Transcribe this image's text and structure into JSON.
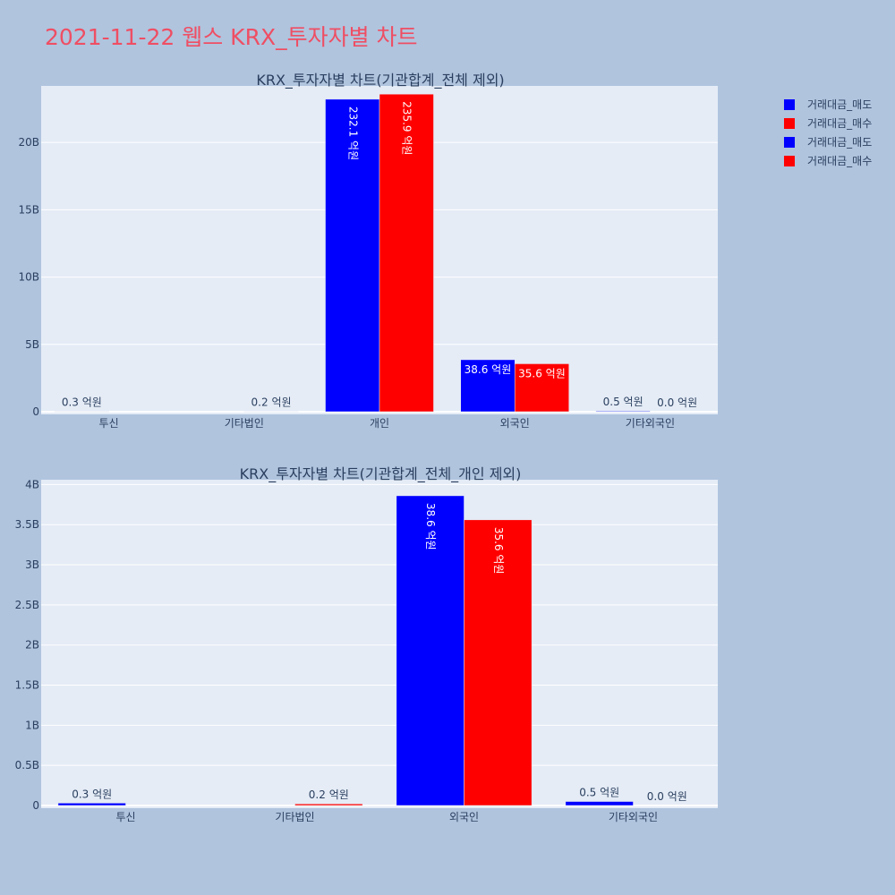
{
  "title": "2021-11-22 웹스 KRX_투자자별 차트",
  "legend": [
    {
      "label": "거래대금_매도",
      "color": "#0000ff"
    },
    {
      "label": "거래대금_매수",
      "color": "#ff0000"
    },
    {
      "label": "거래대금_매도",
      "color": "#0000ff"
    },
    {
      "label": "거래대금_매수",
      "color": "#ff0000"
    }
  ],
  "chart_data": [
    {
      "type": "bar",
      "title": "KRX_투자자별 차트(기관합계_전체 제외)",
      "categories": [
        "투신",
        "기타법인",
        "개인",
        "외국인",
        "기타외국인"
      ],
      "ylim": [
        0,
        24200000000
      ],
      "yticks": [
        0,
        5000000000,
        10000000000,
        15000000000,
        20000000000
      ],
      "ytick_labels": [
        "0",
        "5B",
        "10B",
        "15B",
        "20B"
      ],
      "grid": true,
      "legend_position": "top-right",
      "series": [
        {
          "name": "거래대금_매도",
          "color": "#0000ff",
          "values": [
            30000000,
            0,
            23210000000,
            3860000000,
            50000000
          ],
          "labels": [
            "0.3 억원",
            "",
            "232.1 억원",
            "38.6 억원",
            "0.5 억원"
          ]
        },
        {
          "name": "거래대금_매수",
          "color": "#ff0000",
          "values": [
            0,
            20000000,
            23590000000,
            3560000000,
            0
          ],
          "labels": [
            "",
            "0.2 억원",
            "235.9 억원",
            "35.6 억원",
            "0.0 억원"
          ]
        }
      ]
    },
    {
      "type": "bar",
      "title": "KRX_투자자별 차트(기관합계_전체_개인 제외)",
      "categories": [
        "투신",
        "기타법인",
        "외국인",
        "기타외국인"
      ],
      "ylim": [
        0,
        4060000000
      ],
      "yticks": [
        0,
        500000000,
        1000000000,
        1500000000,
        2000000000,
        2500000000,
        3000000000,
        3500000000,
        4000000000
      ],
      "ytick_labels": [
        "0",
        "0.5B",
        "1B",
        "1.5B",
        "2B",
        "2.5B",
        "3B",
        "3.5B",
        "4B"
      ],
      "grid": true,
      "series": [
        {
          "name": "거래대금_매도",
          "color": "#0000ff",
          "values": [
            30000000,
            0,
            3860000000,
            50000000
          ],
          "labels": [
            "0.3 억원",
            "",
            "38.6 억원",
            "0.5 억원"
          ]
        },
        {
          "name": "거래대금_매수",
          "color": "#ff0000",
          "values": [
            0,
            20000000,
            3560000000,
            0
          ],
          "labels": [
            "",
            "0.2 억원",
            "35.6 억원",
            "0.0 억원"
          ]
        }
      ]
    }
  ]
}
